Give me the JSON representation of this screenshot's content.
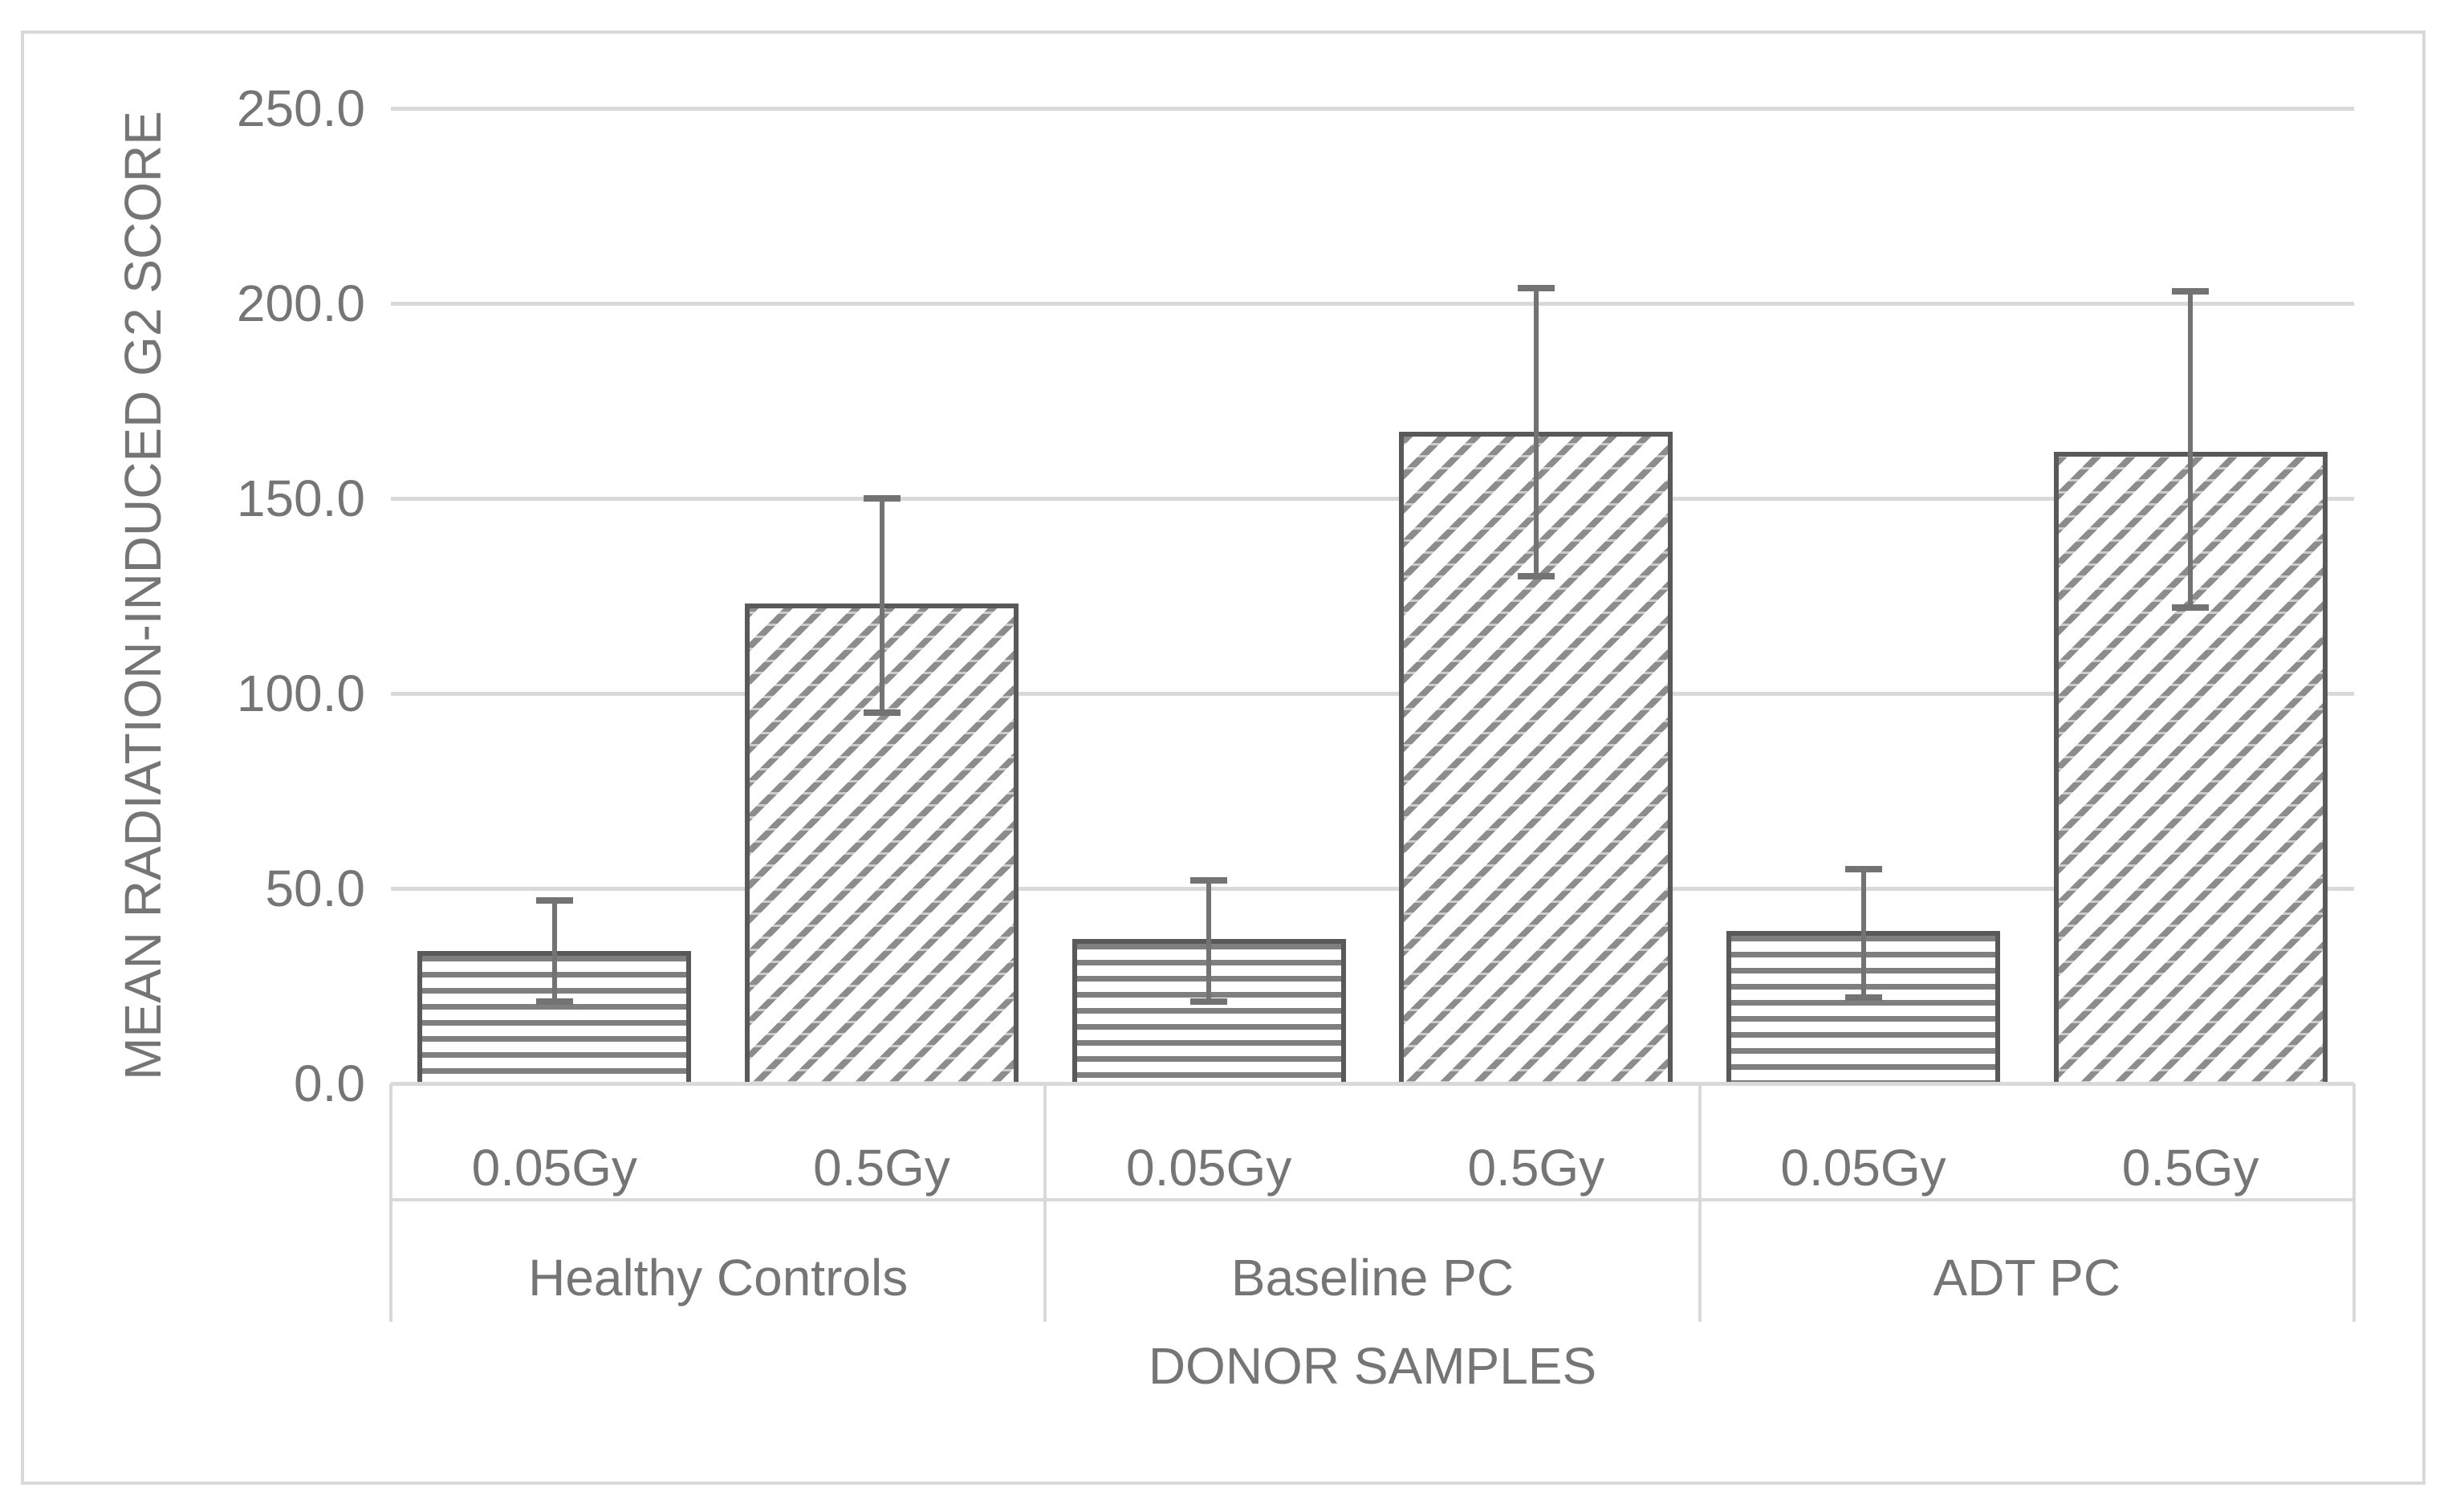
{
  "chart_data": {
    "type": "bar",
    "title": "",
    "xlabel": "DONOR SAMPLES",
    "ylabel": "MEAN RADIATION-INDUCED G2 SCORE",
    "ylim": [
      0,
      250
    ],
    "ytick_step": 50,
    "ytick_labels": [
      "0.0",
      "50.0",
      "100.0",
      "150.0",
      "200.0",
      "250.0"
    ],
    "grid": "horizontal",
    "legend_position": "none",
    "groups": [
      "Healthy Controls",
      "Baseline PC",
      "ADT PC"
    ],
    "doses": [
      "0.05Gy",
      "0.5Gy"
    ],
    "series": [
      {
        "name": "0.05Gy",
        "pattern": "horizontal-stripes",
        "values": [
          34,
          37,
          39
        ],
        "error_low": [
          21,
          21,
          22
        ],
        "error_high": [
          47,
          52,
          55
        ]
      },
      {
        "name": "0.5Gy",
        "pattern": "diagonal-stripes",
        "values": [
          123,
          167,
          162
        ],
        "error_low": [
          95,
          130,
          122
        ],
        "error_high": [
          150,
          204,
          203
        ]
      }
    ],
    "colors": {
      "background": "#ffffff",
      "gridline": "#d9d9d9",
      "frame_border": "#d9d9d9",
      "bar_outline": "#595959",
      "pattern_stripe": "#7f7f7f",
      "error_bar": "#737373",
      "text": "#757575"
    }
  }
}
